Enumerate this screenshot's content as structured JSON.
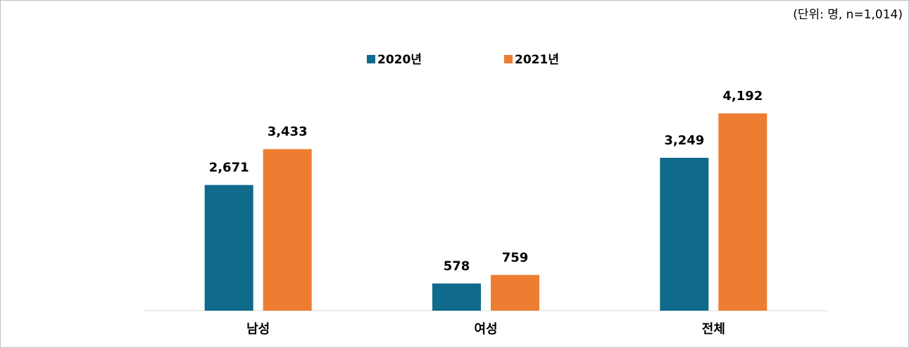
{
  "chart_data": {
    "type": "bar",
    "subtitle": "(단위: 명, n=1,014)",
    "categories": [
      "남성",
      "여성",
      "전체"
    ],
    "series": [
      {
        "name": "2020년",
        "color": "#0f6a8b",
        "values": [
          2671,
          578,
          3249
        ],
        "value_labels": [
          "2,671",
          "578",
          "3,249"
        ]
      },
      {
        "name": "2021년",
        "color": "#ed7d31",
        "values": [
          3433,
          759,
          4192
        ],
        "value_labels": [
          "3,433",
          "759",
          "4,192"
        ]
      }
    ],
    "legend": "top"
  }
}
